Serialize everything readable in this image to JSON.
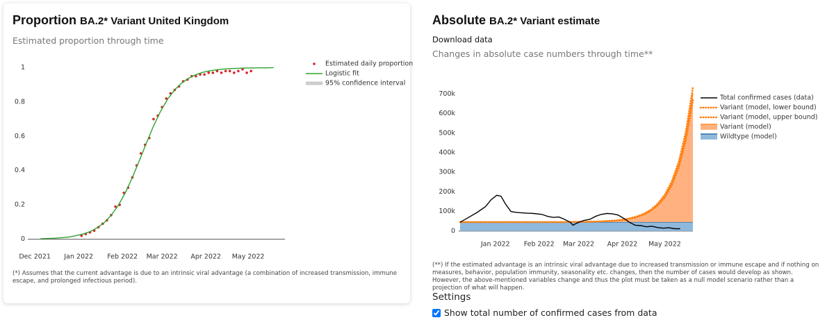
{
  "chart_data": [
    {
      "type": "line",
      "title": "Proportion",
      "title_detail": "BA.2* Variant United Kingdom",
      "subtitle": "Estimated proportion through time",
      "footnote": "(*) Assumes that the current advantage is due to an intrinsic viral advantage (a combination of increased transmission, immune escape, and prolonged infectious period).",
      "xlim": [
        -5,
        177
      ],
      "xticks": [
        {
          "value": 0,
          "label": "Dec 2021"
        },
        {
          "value": 31,
          "label": "Jan 2022"
        },
        {
          "value": 62,
          "label": "Feb 2022"
        },
        {
          "value": 90,
          "label": "Mar 2022"
        },
        {
          "value": 121,
          "label": "Apr 2022"
        },
        {
          "value": 151,
          "label": "May 2022"
        }
      ],
      "ylim": [
        -0.03,
        1.03
      ],
      "yticks": [
        0,
        0.2,
        0.4,
        0.6,
        0.8,
        1
      ],
      "zero_line": true,
      "series": [
        {
          "name": "Estimated daily proportion",
          "color": "#d62728",
          "mode": "markers",
          "x": [
            33,
            36,
            39,
            42,
            45,
            48,
            51,
            54,
            57,
            60,
            63,
            66,
            69,
            72,
            75,
            78,
            81,
            84,
            87,
            90,
            93,
            96,
            99,
            102,
            105,
            108,
            111,
            114,
            117,
            120,
            123,
            126,
            129,
            132,
            135,
            138,
            141,
            144,
            147,
            150,
            153
          ],
          "values": [
            0.02,
            0.03,
            0.04,
            0.05,
            0.07,
            0.09,
            0.11,
            0.14,
            0.19,
            0.2,
            0.27,
            0.3,
            0.36,
            0.43,
            0.5,
            0.55,
            0.59,
            0.7,
            0.72,
            0.77,
            0.82,
            0.85,
            0.87,
            0.89,
            0.92,
            0.93,
            0.95,
            0.95,
            0.96,
            0.96,
            0.97,
            0.97,
            0.98,
            0.97,
            0.98,
            0.98,
            0.97,
            0.98,
            0.99,
            0.97,
            0.98
          ]
        },
        {
          "name": "Logistic fit",
          "color": "#2ca02c",
          "mode": "line",
          "x": [
            4,
            9,
            14,
            19,
            24,
            29,
            34,
            39,
            44,
            49,
            54,
            59,
            64,
            69,
            74,
            79,
            84,
            89,
            94,
            99,
            104,
            109,
            114,
            119,
            124,
            129,
            134,
            139,
            144,
            149,
            154,
            159,
            164,
            169
          ],
          "values": [
            0.0025,
            0.0038,
            0.0058,
            0.0088,
            0.013,
            0.02,
            0.03,
            0.044,
            0.066,
            0.096,
            0.139,
            0.196,
            0.27,
            0.359,
            0.459,
            0.562,
            0.66,
            0.746,
            0.817,
            0.871,
            0.911,
            0.939,
            0.959,
            0.973,
            0.982,
            0.988,
            0.992,
            0.995,
            0.996,
            0.998,
            0.998,
            0.999,
            0.999,
            1
          ]
        },
        {
          "name": "95% confidence interval",
          "color": "#cccccc",
          "mode": "band"
        }
      ]
    },
    {
      "type": "area",
      "title": "Absolute",
      "title_detail": "BA.2* Variant estimate",
      "link": "Download data",
      "subtitle": "Changes in absolute case numbers through time**",
      "footnote": "(**) If the estimated advantage is an intrinsic viral advantage due to increased transmission or immune escape and if nothing on measures, behavior, population immunity, seasonality etc. changes, then the number of cases would develop as shown. However, the above-mentioned variables change and thus the plot must be taken as a null model scenario rather than a projection of what will happen.",
      "xlim": [
        5,
        171
      ],
      "xticks": [
        {
          "value": 31,
          "label": "Jan 2022"
        },
        {
          "value": 62,
          "label": "Feb 2022"
        },
        {
          "value": 90,
          "label": "Mar 2022"
        },
        {
          "value": 121,
          "label": "Apr 2022"
        },
        {
          "value": 151,
          "label": "May 2022"
        }
      ],
      "ylim": [
        -18000,
        740000
      ],
      "yticks": [
        0,
        {
          "value": 100000,
          "label": "100k"
        },
        {
          "value": 200000,
          "label": "200k"
        },
        {
          "value": 300000,
          "label": "300k"
        },
        {
          "value": 400000,
          "label": "400k"
        },
        {
          "value": 500000,
          "label": "500k"
        },
        {
          "value": 600000,
          "label": "600k"
        },
        {
          "value": 700000,
          "label": "700k"
        }
      ],
      "zero_line": true,
      "series": [
        {
          "name": "Total confirmed cases (data)",
          "color": "#000000",
          "mode": "line",
          "x": [
            6,
            12,
            18,
            24,
            28,
            32,
            35,
            38,
            42,
            46,
            52,
            58,
            64,
            68,
            72,
            76,
            80,
            84,
            86,
            90,
            94,
            98,
            102,
            106,
            110,
            114,
            118,
            122,
            126,
            130,
            134,
            138,
            142,
            146,
            150,
            154,
            158,
            162
          ],
          "values": [
            45000,
            70000,
            95000,
            125000,
            160000,
            183000,
            178000,
            140000,
            100000,
            95000,
            92000,
            90000,
            85000,
            75000,
            70000,
            72000,
            60000,
            45000,
            30000,
            45000,
            55000,
            60000,
            75000,
            85000,
            90000,
            88000,
            82000,
            65000,
            45000,
            30000,
            28000,
            22000,
            25000,
            18000,
            15000,
            17000,
            12000,
            12000
          ]
        },
        {
          "name": "Variant (model, lower bound)",
          "color": "#ff7f0e",
          "mode": "dotted",
          "x": [
            6,
            11,
            16,
            21,
            26,
            31,
            36,
            41,
            46,
            51,
            56,
            61,
            66,
            71,
            76,
            81,
            86,
            91,
            96,
            101,
            106,
            111,
            116,
            121,
            126,
            131,
            136,
            141,
            146,
            151,
            156,
            161,
            166,
            171
          ],
          "values": [
            46000,
            46000,
            46000,
            46000,
            46000,
            46000,
            46000,
            46000,
            46000,
            46000,
            46000,
            46000,
            46000,
            46000,
            46000,
            46000,
            47000,
            47000,
            48000,
            48000,
            49000,
            51000,
            54000,
            57000,
            63000,
            71000,
            84000,
            102000,
            130000,
            171000,
            233000,
            325000,
            463000,
            668000
          ]
        },
        {
          "name": "Variant (model, upper bound)",
          "color": "#ff7f0e",
          "mode": "dotted",
          "x": [
            6,
            11,
            16,
            21,
            26,
            31,
            36,
            41,
            46,
            51,
            56,
            61,
            66,
            71,
            76,
            81,
            86,
            91,
            96,
            101,
            106,
            111,
            116,
            121,
            126,
            131,
            136,
            141,
            146,
            151,
            156,
            161,
            166,
            171
          ],
          "values": [
            46000,
            46000,
            46000,
            46000,
            46000,
            46000,
            46000,
            46000,
            46000,
            46000,
            46000,
            46000,
            46000,
            46000,
            46000,
            46000,
            47000,
            47000,
            48000,
            49000,
            50000,
            52000,
            54000,
            59000,
            65000,
            74000,
            88000,
            108000,
            139000,
            185000,
            253000,
            355000,
            507000,
            734000
          ]
        },
        {
          "name": "Variant (model)",
          "color": "#ffb27f",
          "edge_color": "#ff7f0e",
          "mode": "area",
          "stacked": true,
          "x": [
            6,
            11,
            16,
            21,
            26,
            31,
            36,
            41,
            46,
            51,
            56,
            61,
            66,
            71,
            76,
            81,
            86,
            91,
            96,
            101,
            106,
            111,
            116,
            121,
            126,
            131,
            136,
            141,
            146,
            151,
            156,
            161,
            166,
            171
          ],
          "values": [
            1,
            2,
            3,
            4,
            6,
            9,
            13,
            20,
            30,
            44,
            66,
            100,
            150,
            220,
            330,
            490,
            730,
            1090,
            1620,
            2420,
            3610,
            5390,
            8040,
            12000,
            17900,
            26700,
            39800,
            59400,
            88600,
            132000,
            197000,
            294000,
            439000,
            655000
          ]
        },
        {
          "name": "Wildtype (model)",
          "color": "#8fb9dc",
          "edge_color": "#1f5a96",
          "mode": "area",
          "x": [
            6,
            11,
            16,
            21,
            26,
            31,
            36,
            41,
            46,
            51,
            56,
            61,
            66,
            71,
            76,
            81,
            86,
            91,
            96,
            101,
            106,
            111,
            116,
            121,
            126,
            131,
            136,
            141,
            146,
            151,
            156,
            161,
            166,
            171
          ],
          "values": [
            46000,
            46000,
            46000,
            46000,
            46000,
            46000,
            46000,
            46000,
            46000,
            46000,
            46000,
            46000,
            46000,
            46000,
            46000,
            46000,
            46000,
            46000,
            46000,
            46000,
            46000,
            46000,
            46000,
            46000,
            46000,
            46000,
            46000,
            46000,
            46000,
            46000,
            46000,
            46000,
            46000,
            46000
          ]
        }
      ]
    }
  ],
  "settings": {
    "heading": "Settings",
    "options": [
      {
        "label": "Show total number of confirmed cases from data",
        "checked": true
      }
    ]
  }
}
